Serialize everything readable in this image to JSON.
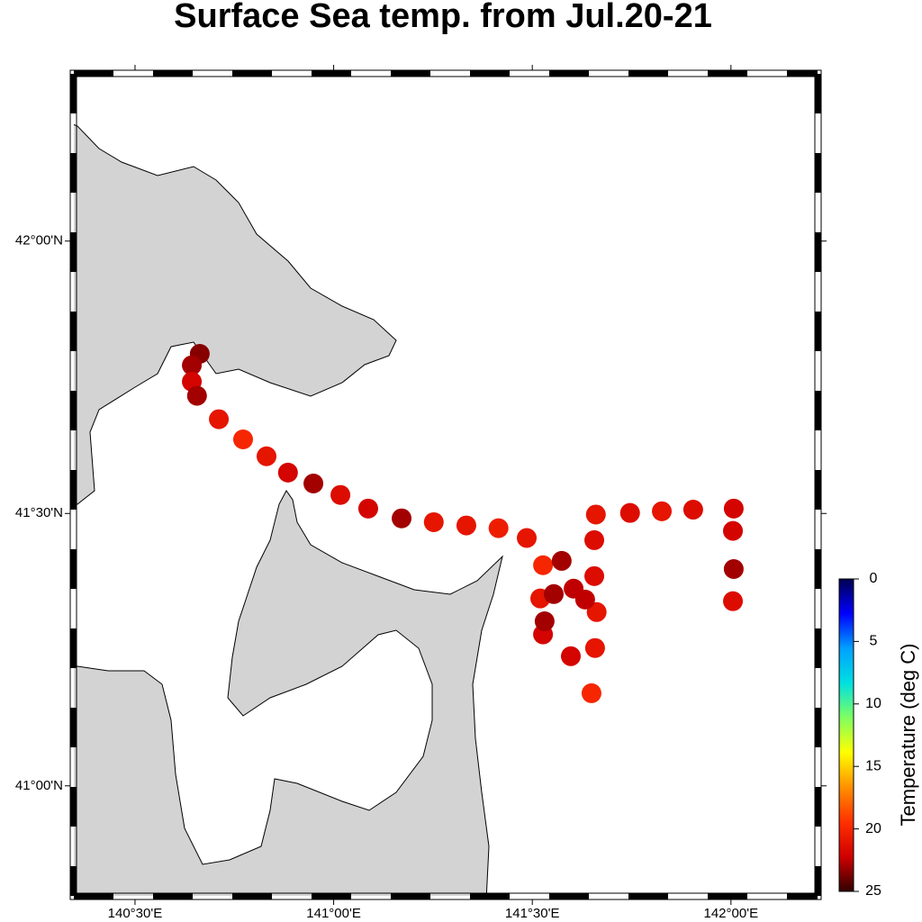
{
  "chart_data": {
    "type": "scatter",
    "title": "Surface Sea temp. from Jul.20-21",
    "xlim": [
      140.346,
      142.218
    ],
    "ylim": [
      40.798,
      42.307
    ],
    "xticks": [
      {
        "value": 140.5,
        "label": "140°30'E"
      },
      {
        "value": 141,
        "label": "141°00'E"
      },
      {
        "value": 141.5,
        "label": "141°30'E"
      },
      {
        "value": 142,
        "label": "142°00'E"
      }
    ],
    "yticks": [
      {
        "value": 41,
        "label": "41°00'N"
      },
      {
        "value": 41.5,
        "label": "41°30'N"
      },
      {
        "value": 42,
        "label": "42°00'N"
      }
    ],
    "x": [
      140.663,
      140.643,
      140.643,
      140.656,
      140.711,
      140.772,
      140.831,
      140.885,
      140.949,
      141.017,
      141.087,
      141.171,
      141.252,
      141.334,
      141.415,
      141.486,
      141.527,
      141.52,
      141.527,
      141.597,
      141.649,
      141.658,
      141.662,
      141.656,
      141.656,
      141.66,
      141.746,
      141.826,
      141.905,
      142.007,
      142.005,
      142.007,
      142.005,
      141.574,
      141.604,
      141.554,
      141.633,
      141.531
    ],
    "values": [
      41.793,
      41.772,
      41.742,
      41.716,
      41.673,
      41.636,
      41.605,
      41.575,
      41.555,
      41.534,
      41.509,
      41.491,
      41.484,
      41.478,
      41.473,
      41.455,
      41.405,
      41.344,
      41.278,
      41.238,
      41.17,
      41.253,
      41.319,
      41.385,
      41.451,
      41.498,
      41.501,
      41.504,
      41.507,
      41.509,
      41.468,
      41.398,
      41.339,
      41.413,
      41.362,
      41.352,
      41.342,
      41.302
    ],
    "temps": [
      23.5,
      23,
      22,
      23,
      21,
      20,
      21,
      22,
      23,
      21.5,
      22,
      23,
      21,
      21,
      20.5,
      21,
      20,
      21,
      22,
      22,
      20,
      21,
      21,
      21.5,
      21.5,
      21,
      21.5,
      21,
      21.5,
      22,
      22,
      23,
      21.5,
      23,
      22.5,
      23,
      22.5,
      23
    ],
    "colorbar": {
      "label": "Temperature (deg C)",
      "lim": [
        0,
        25
      ],
      "ticks": [
        0,
        5,
        10,
        15,
        20,
        25
      ],
      "colormap": [
        "#000050",
        "#0000ff",
        "#00a0ff",
        "#00e0e0",
        "#80ff60",
        "#ffff00",
        "#ff9000",
        "#ff3000",
        "#d00000",
        "#300000"
      ]
    }
  }
}
